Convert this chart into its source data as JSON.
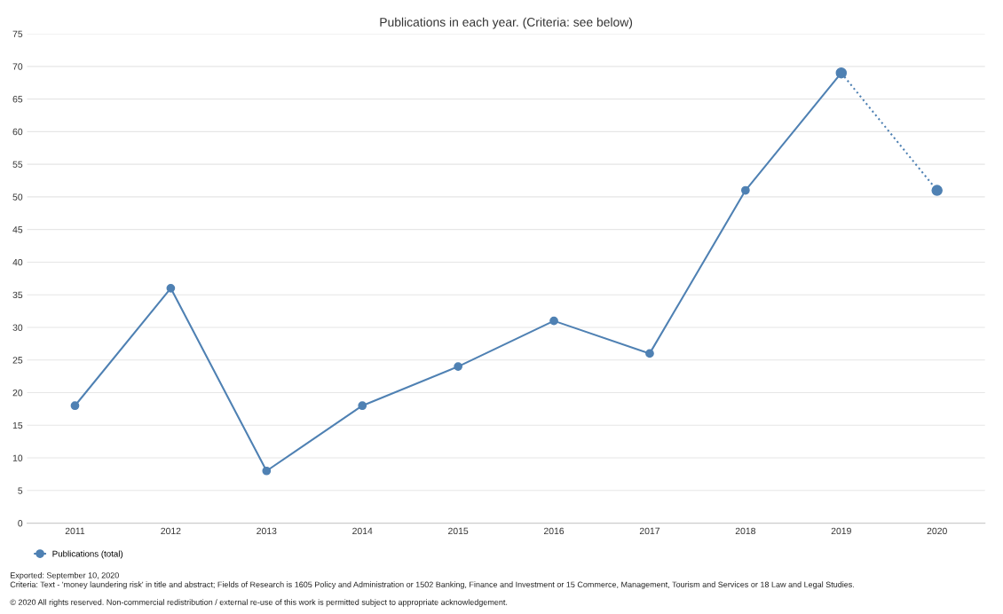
{
  "chart_data": {
    "type": "line",
    "title": "Publications in each year. (Criteria: see below)",
    "categories": [
      "2011",
      "2012",
      "2013",
      "2014",
      "2015",
      "2016",
      "2017",
      "2018",
      "2019",
      "2020"
    ],
    "series": [
      {
        "name": "Publications (total)",
        "color": "#4f81b3",
        "values": [
          18,
          36,
          8,
          18,
          24,
          31,
          26,
          51,
          69,
          null
        ],
        "line_style": "solid",
        "marker": "circle"
      },
      {
        "color": "#4f81b3",
        "values": [
          null,
          null,
          null,
          null,
          null,
          null,
          null,
          null,
          69,
          51
        ],
        "line_style": "dotted",
        "marker": "circle"
      }
    ],
    "ylim": [
      0,
      75
    ],
    "yticks": [
      0,
      5,
      10,
      15,
      20,
      25,
      30,
      35,
      40,
      45,
      50,
      55,
      60,
      65,
      70,
      75
    ],
    "grid": "y",
    "legend": "bottom left",
    "annotations": [
      "Exported: September 10, 2020",
      "Criteria: Text - 'money laundering risk' in title and abstract; Fields of Research is 1605 Policy and Administration or 1502 Banking, Finance and Investment or 15 Commerce, Management, Tourism and Services or 18 Law and Legal Studies.",
      "© 2020 All rights reserved. Non-commercial redistribution / external re-use of this work is permitted subject to appropriate acknowledgement."
    ]
  }
}
